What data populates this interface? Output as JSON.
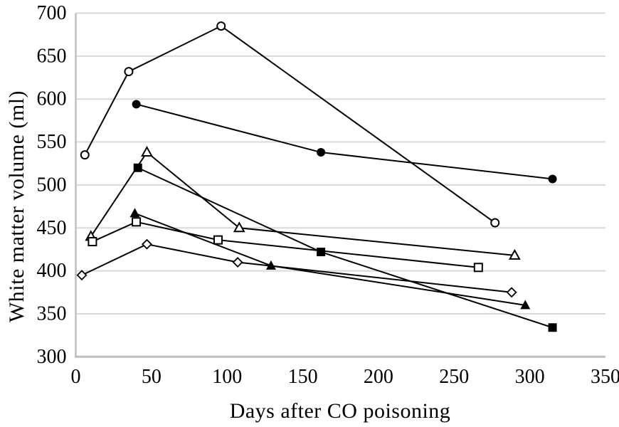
{
  "figure": {
    "background": "#ffffff",
    "title": ""
  },
  "chart_data": {
    "type": "line",
    "title": "",
    "xlabel": "Days after CO poisoning",
    "ylabel": "White matter volume (ml)",
    "xlim": [
      0,
      350
    ],
    "ylim": [
      300,
      700
    ],
    "xticks": [
      0,
      50,
      100,
      150,
      200,
      250,
      300,
      350
    ],
    "yticks": [
      300,
      350,
      400,
      450,
      500,
      550,
      600,
      650,
      700
    ],
    "grid": "horizontal-only",
    "gridline_color": "#d9d9d9",
    "axis_line_color": "#bfbfbf",
    "line_color": "#000000",
    "marker_fill_open": "#ffffff",
    "legend": "none",
    "series": [
      {
        "name": "subject-open-circle",
        "marker": "open-circle",
        "x": [
          6,
          35,
          96,
          277
        ],
        "y": [
          535,
          632,
          685,
          456
        ]
      },
      {
        "name": "subject-filled-circle",
        "marker": "filled-circle",
        "x": [
          40,
          162,
          315
        ],
        "y": [
          594,
          538,
          507
        ]
      },
      {
        "name": "subject-open-triangle",
        "marker": "open-triangle",
        "x": [
          10,
          47,
          108,
          290
        ],
        "y": [
          440,
          538,
          450,
          418
        ]
      },
      {
        "name": "subject-filled-triangle",
        "marker": "filled-triangle",
        "x": [
          39,
          129,
          297
        ],
        "y": [
          467,
          406,
          360
        ]
      },
      {
        "name": "subject-open-square",
        "marker": "open-square",
        "x": [
          11,
          40,
          94,
          266
        ],
        "y": [
          434,
          457,
          436,
          404
        ]
      },
      {
        "name": "subject-filled-square",
        "marker": "filled-square",
        "x": [
          41,
          162,
          315
        ],
        "y": [
          520,
          422,
          334
        ]
      },
      {
        "name": "subject-open-diamond",
        "marker": "open-diamond",
        "x": [
          4,
          47,
          107,
          288
        ],
        "y": [
          395,
          431,
          410,
          375
        ]
      }
    ]
  }
}
